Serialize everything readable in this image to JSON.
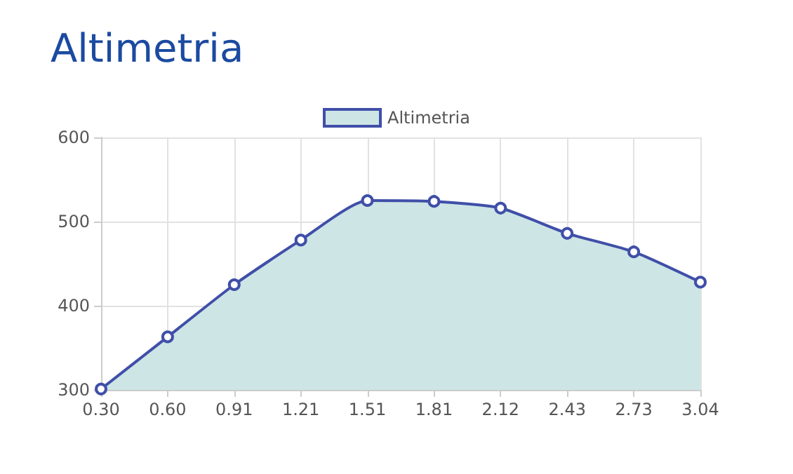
{
  "chart_data": {
    "type": "area",
    "title": "Altimetria",
    "categories": [
      "0.30",
      "0.60",
      "0.91",
      "1.21",
      "1.51",
      "1.81",
      "2.12",
      "2.43",
      "2.73",
      "3.04"
    ],
    "series": [
      {
        "name": "Altimetria",
        "color": "#3f4fa8",
        "values": [
          301,
          363,
          425,
          478,
          525,
          524,
          516,
          486,
          464,
          428
        ]
      }
    ],
    "ylim": [
      300,
      600
    ],
    "yticks": [
      300,
      400,
      500,
      600
    ],
    "grid": true,
    "legend": "top",
    "marker": "circle",
    "line_style": "solid"
  }
}
